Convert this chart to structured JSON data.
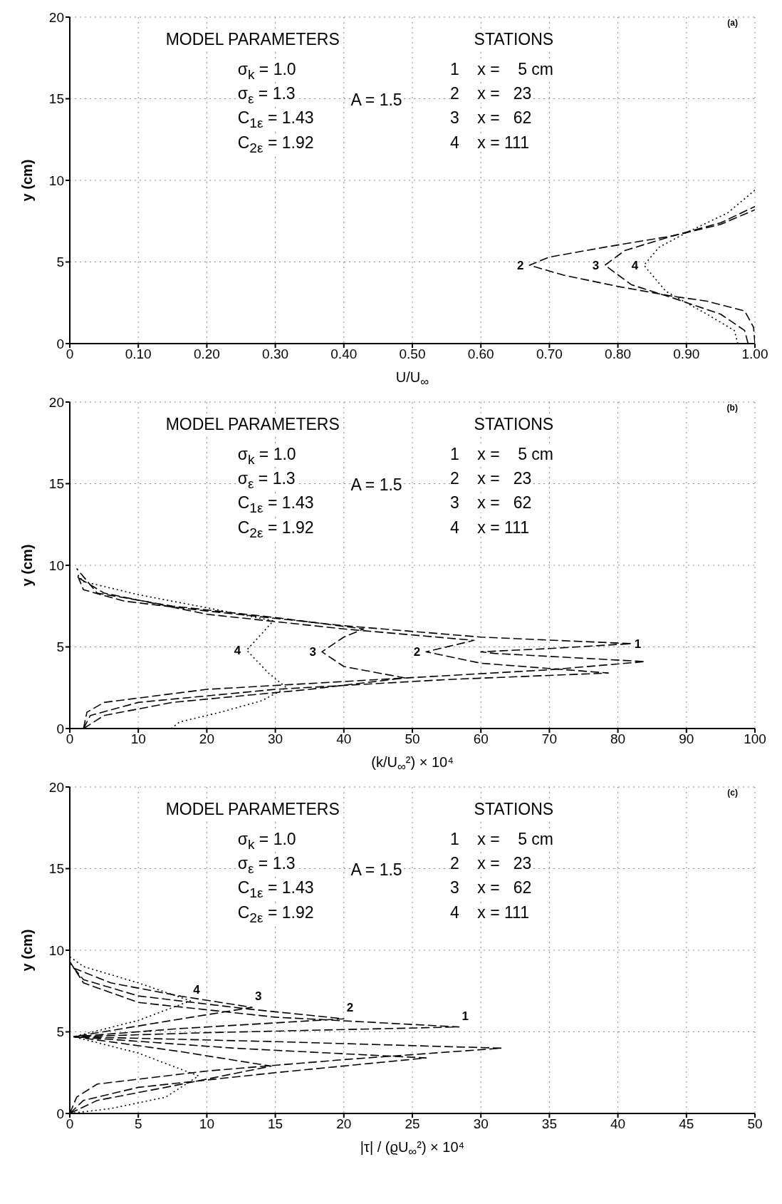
{
  "chart_data": [
    {
      "type": "line",
      "xlabel": "U/U$_{∞}$",
      "ylabel": "y (cm)",
      "xlim": [
        0,
        1
      ],
      "xticks": [
        0,
        {
          "value": 0.1,
          "label": "0.10"
        },
        {
          "value": 0.2,
          "label": "0.20"
        },
        {
          "value": 0.3,
          "label": "0.30"
        },
        {
          "value": 0.4,
          "label": "0.40"
        },
        {
          "value": 0.5,
          "label": "0.50"
        },
        {
          "value": 0.6,
          "label": "0.60"
        },
        {
          "value": 0.7,
          "label": "0.70"
        },
        {
          "value": 0.8,
          "label": "0.80"
        },
        {
          "value": 0.9,
          "label": "0.90"
        },
        {
          "value": 1,
          "label": "1.00"
        }
      ],
      "ylim": [
        0,
        20
      ],
      "yticks": [
        0,
        5,
        10,
        15,
        20
      ],
      "grid": true,
      "marker": "none",
      "annotations": [
        "(a)",
        "MODEL PARAMETERS",
        "σ$_{k}$ = 1.0",
        "σ$_{ε}$ = 1.3",
        "C$_{1ε}$ = 1.43",
        "C$_{2ε}$ = 1.92",
        "A = 1.5",
        "STATIONS",
        "1    x =    5 cm",
        "2    x =   23",
        "3    x =   62",
        "4    x = 111"
      ],
      "series": [
        {
          "name": "2",
          "color": "#000000",
          "line_style": "dashed",
          "x": [
            1.0,
            0.998,
            0.985,
            0.93,
            0.88,
            0.8,
            0.72,
            0.671,
            0.7,
            0.78,
            0.88,
            0.95,
            1.0
          ],
          "values": [
            0,
            1.0,
            2.0,
            2.6,
            2.9,
            3.5,
            4.2,
            4.8,
            5.3,
            5.9,
            6.6,
            7.3,
            8.2
          ]
        },
        {
          "name": "3",
          "color": "#000000",
          "line_style": "dashed",
          "x": [
            0.99,
            0.985,
            0.95,
            0.88,
            0.82,
            0.781,
            0.81,
            0.88,
            0.95,
            1.0
          ],
          "values": [
            0,
            0.8,
            1.8,
            2.8,
            3.6,
            4.8,
            5.7,
            6.6,
            7.4,
            8.4
          ]
        },
        {
          "name": "4",
          "color": "#000000",
          "line_style": "dotted",
          "x": [
            0.975,
            0.97,
            0.93,
            0.87,
            0.838,
            0.86,
            0.9,
            0.96,
            1.0
          ],
          "values": [
            0,
            0.8,
            1.8,
            3.2,
            4.8,
            5.9,
            6.8,
            8.0,
            9.4
          ]
        }
      ]
    },
    {
      "type": "line",
      "xlabel": "(k/U$_{∞}$²) × 10⁴",
      "ylabel": "y (cm)",
      "xlim": [
        0,
        100
      ],
      "xticks": [
        0,
        10,
        20,
        30,
        40,
        50,
        60,
        70,
        80,
        90,
        100
      ],
      "ylim": [
        0,
        20
      ],
      "yticks": [
        0,
        5,
        10,
        15,
        20
      ],
      "grid": true,
      "marker": "none",
      "annotations": [
        "(b)",
        "MODEL PARAMETERS",
        "σ$_{k}$ = 1.0",
        "σ$_{ε}$ = 1.3",
        "C$_{1ε}$ = 1.43",
        "C$_{2ε}$ = 1.92",
        "A = 1.5",
        "STATIONS",
        "1    x =    5 cm",
        "2    x =   23",
        "3    x =   62",
        "4    x = 111"
      ],
      "series": [
        {
          "name": "1",
          "color": "#000000",
          "line_style": "dashed",
          "x": [
            2,
            2.5,
            5,
            20,
            45,
            70,
            84,
            62,
            60,
            70,
            82,
            60,
            40,
            20,
            8,
            2,
            1
          ],
          "values": [
            0,
            1,
            1.6,
            2.4,
            3.0,
            3.6,
            4.1,
            4.6,
            4.7,
            4.9,
            5.2,
            5.6,
            6.3,
            7.2,
            7.8,
            8.5,
            9.5
          ]
        },
        {
          "name": "2",
          "color": "#000000",
          "line_style": "dashed",
          "x": [
            2,
            3,
            10,
            30,
            55,
            78.6,
            60,
            52,
            59,
            40,
            20,
            5,
            1
          ],
          "values": [
            0,
            0.8,
            1.6,
            2.4,
            3.0,
            3.4,
            4.0,
            4.7,
            5.4,
            6.1,
            7.0,
            8.3,
            9.3
          ]
        },
        {
          "name": "3",
          "color": "#000000",
          "line_style": "dashed",
          "x": [
            2,
            5,
            15,
            35,
            48.9,
            40,
            36.8,
            40,
            42.9,
            30,
            15,
            4,
            1
          ],
          "values": [
            0,
            0.8,
            1.6,
            2.4,
            3.1,
            3.8,
            4.7,
            5.6,
            6.1,
            6.8,
            7.5,
            8.3,
            9.8
          ]
        },
        {
          "name": "4",
          "color": "#000000",
          "line_style": "dotted",
          "x": [
            14.8,
            16,
            22,
            28,
            31.6,
            29,
            25.8,
            28,
            29.7,
            20,
            10,
            2,
            1
          ],
          "values": [
            0,
            0.4,
            1.0,
            1.7,
            2.5,
            3.4,
            4.8,
            5.8,
            6.6,
            7.4,
            8.2,
            9,
            9.5
          ]
        }
      ]
    },
    {
      "type": "line",
      "xlabel": "|τ| / (ϱU$_{∞}$²) × 10⁴",
      "ylabel": "y (cm)",
      "xlim": [
        0,
        50
      ],
      "xticks": [
        0,
        5,
        10,
        15,
        20,
        25,
        30,
        35,
        40,
        45,
        50
      ],
      "ylim": [
        0,
        20
      ],
      "yticks": [
        0,
        5,
        10,
        15,
        20
      ],
      "grid": true,
      "marker": "none",
      "annotations": [
        "(c)",
        "MODEL PARAMETERS",
        "σ$_{k}$ = 1.0",
        "σ$_{ε}$ = 1.3",
        "C$_{1ε}$ = 1.43",
        "C$_{2ε}$ = 1.92",
        "A = 1.5",
        "STATIONS",
        "1    x =    5 cm",
        "2    x =   23",
        "3    x =   62",
        "4    x = 111"
      ],
      "series": [
        {
          "name": "1",
          "color": "#000000",
          "line_style": "dashed",
          "x": [
            0,
            0.5,
            2,
            10,
            20,
            31.5,
            15,
            0.3,
            10,
            28.4,
            15,
            5,
            1,
            0
          ],
          "values": [
            0,
            1,
            1.8,
            2.6,
            3.3,
            4.0,
            4.4,
            4.7,
            4.95,
            5.3,
            5.9,
            6.8,
            8,
            9.3
          ]
        },
        {
          "name": "2",
          "color": "#000000",
          "line_style": "dashed",
          "x": [
            0,
            1,
            5,
            15,
            26,
            12,
            0.3,
            8,
            20,
            13,
            5,
            1,
            0
          ],
          "values": [
            0,
            0.8,
            1.6,
            2.5,
            3.4,
            4.0,
            4.7,
            5.2,
            5.8,
            6.4,
            7.2,
            8.2,
            9.2
          ]
        },
        {
          "name": "3",
          "color": "#000000",
          "line_style": "dashed",
          "x": [
            0,
            2,
            7,
            14.7,
            8,
            0.3,
            6,
            13.3,
            8,
            3,
            0
          ],
          "values": [
            0,
            0.8,
            1.6,
            2.9,
            3.8,
            4.7,
            5.5,
            6.5,
            7.2,
            8,
            9.0
          ]
        },
        {
          "name": "4",
          "color": "#000000",
          "line_style": "dotted",
          "x": [
            0,
            3,
            7,
            9.4,
            5,
            0.3,
            5,
            8.8,
            5,
            1,
            0
          ],
          "values": [
            0,
            0.3,
            1,
            2.3,
            3.7,
            4.7,
            5.7,
            6.9,
            8,
            9,
            9.6
          ]
        }
      ]
    }
  ]
}
